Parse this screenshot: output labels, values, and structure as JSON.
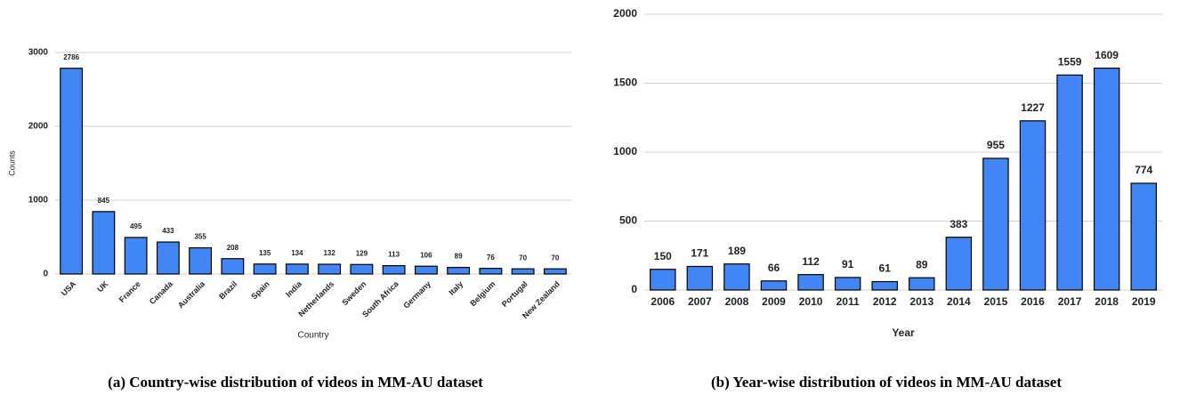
{
  "chart_data": [
    {
      "type": "bar",
      "caption": "(a) Country-wise distribution of videos in MM-AU dataset",
      "x_label": "Country",
      "y_label": "Counts",
      "categories": [
        "USA",
        "UK",
        "France",
        "Canada",
        "Australia",
        "Brazil",
        "Spain",
        "India",
        "Netherlands",
        "Sweden",
        "South Africa",
        "Germany",
        "Italy",
        "Belgium",
        "Portugal",
        "New Zealand"
      ],
      "values": [
        2786,
        845,
        495,
        433,
        355,
        208,
        135,
        134,
        132,
        129,
        113,
        106,
        89,
        76,
        70,
        70
      ],
      "color": "#4285f4",
      "ylim": [
        0,
        3000
      ],
      "yticks": [
        0,
        1000,
        2000,
        3000
      ],
      "grid": true
    },
    {
      "type": "bar",
      "caption": "(b) Year-wise distribution of videos in MM-AU dataset",
      "x_label": "Year",
      "categories": [
        "2006",
        "2007",
        "2008",
        "2009",
        "2010",
        "2011",
        "2012",
        "2013",
        "2014",
        "2015",
        "2016",
        "2017",
        "2018",
        "2019"
      ],
      "values": [
        150,
        171,
        189,
        66,
        112,
        91,
        61,
        89,
        383,
        955,
        1227,
        1559,
        1609,
        774
      ],
      "color": "#4285f4",
      "ylim": [
        0,
        2000
      ],
      "yticks": [
        0,
        500,
        1000,
        1500,
        2000
      ],
      "grid": true
    }
  ]
}
